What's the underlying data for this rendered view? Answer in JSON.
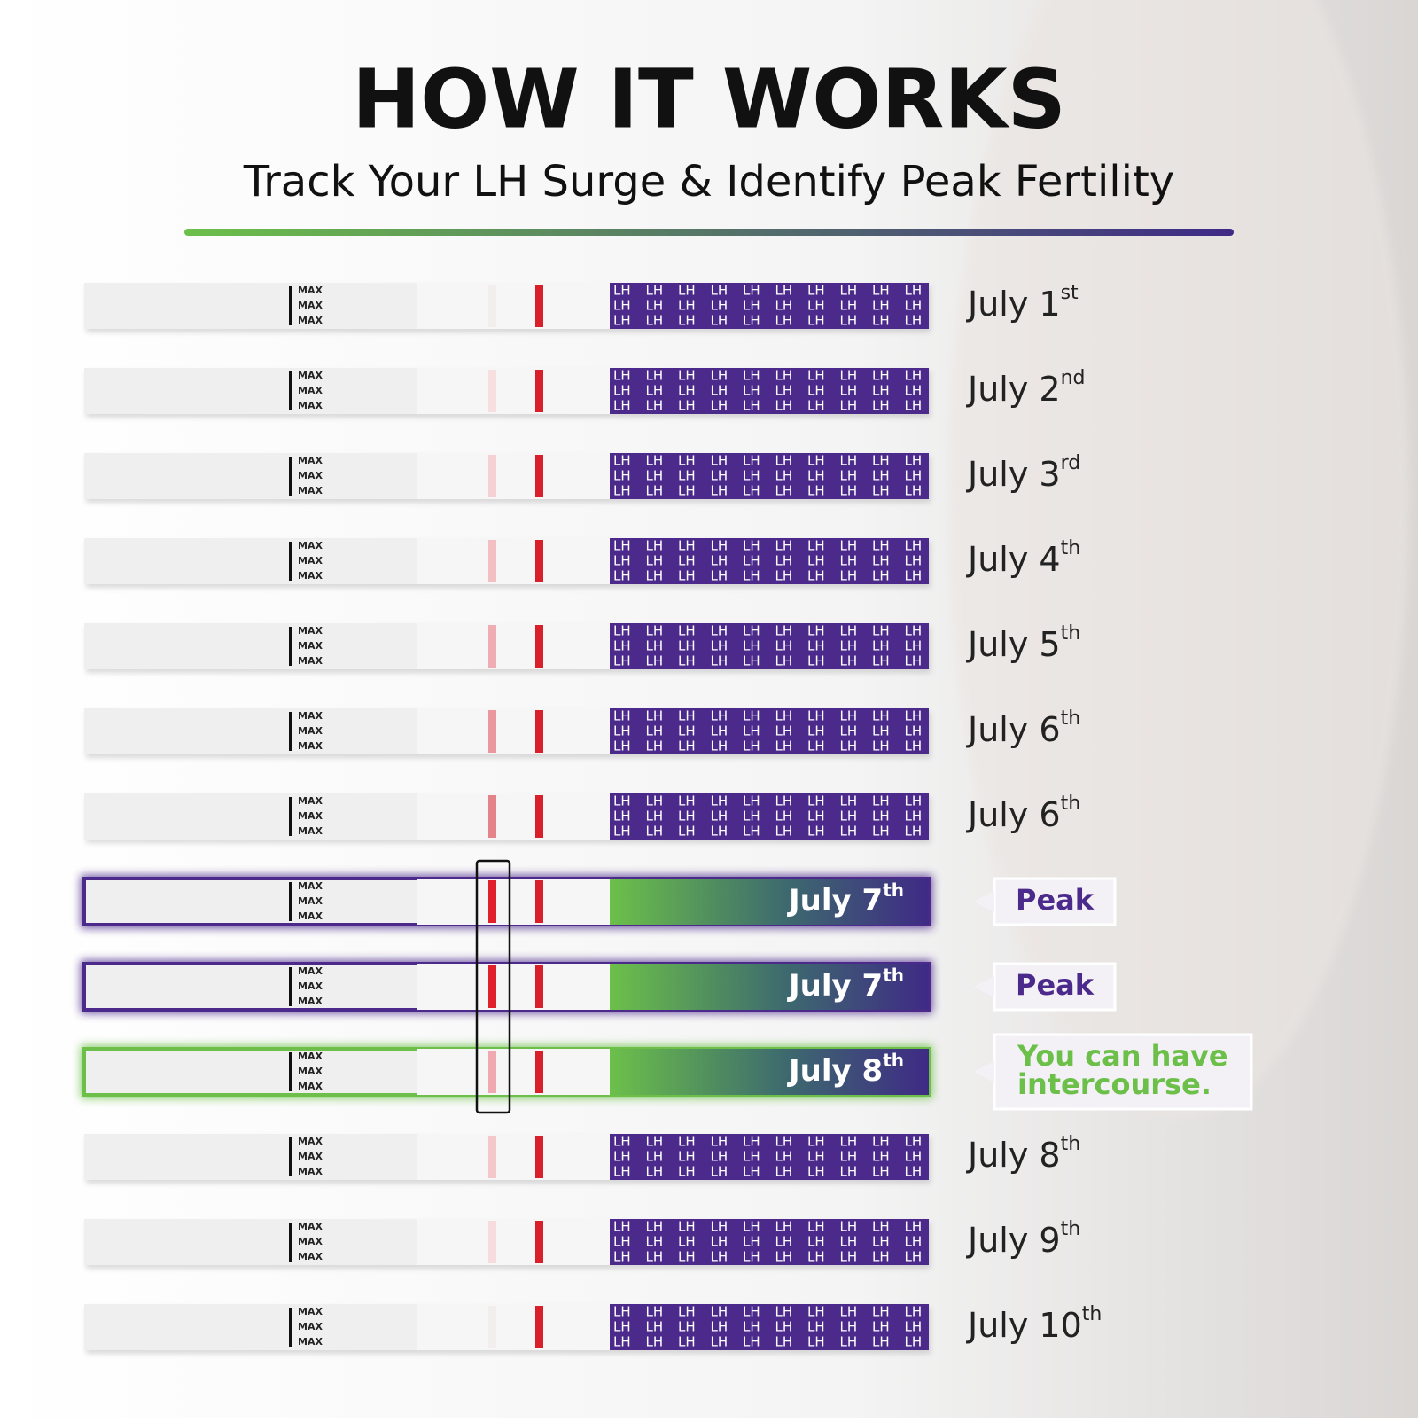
{
  "header": {
    "title": "HOW IT WORKS",
    "subtitle": "Track Your LH Surge & Identify Peak Fertility"
  },
  "strip_labels": {
    "max": "MAX",
    "lh": "LH"
  },
  "strips": [
    {
      "date": "July 1",
      "ordinal": "st",
      "test_line_color": "#f3eeee"
    },
    {
      "date": "July 2",
      "ordinal": "nd",
      "test_line_color": "#f7dfe0"
    },
    {
      "date": "July 3",
      "ordinal": "rd",
      "test_line_color": "#f5d1d3"
    },
    {
      "date": "July 4",
      "ordinal": "th",
      "test_line_color": "#f2bfc3"
    },
    {
      "date": "July 5",
      "ordinal": "th",
      "test_line_color": "#efacb2"
    },
    {
      "date": "July 6",
      "ordinal": "th",
      "test_line_color": "#ea979e"
    },
    {
      "date": "July 6",
      "ordinal": "th",
      "test_line_color": "#e5838b"
    },
    {
      "date": "July 7",
      "ordinal": "th",
      "test_line_color": "#e0202a",
      "highlight": "#4b2a8c",
      "callout": [
        "Peak"
      ],
      "callout_color": "#4b2a8c"
    },
    {
      "date": "July 7",
      "ordinal": "th",
      "test_line_color": "#e0202a",
      "highlight": "#4b2a8c",
      "callout": [
        "Peak"
      ],
      "callout_color": "#4b2a8c"
    },
    {
      "date": "July 8",
      "ordinal": "th",
      "test_line_color": "#f0a9af",
      "highlight": "#6cc04a",
      "callout": [
        "You can have",
        "intercourse."
      ],
      "callout_color": "#6cc04a"
    },
    {
      "date": "July 8",
      "ordinal": "th",
      "test_line_color": "#f4c7cb"
    },
    {
      "date": "July 9",
      "ordinal": "th",
      "test_line_color": "#f6dcde"
    },
    {
      "date": "July 10",
      "ordinal": "th",
      "test_line_color": "#f3eeee"
    }
  ]
}
